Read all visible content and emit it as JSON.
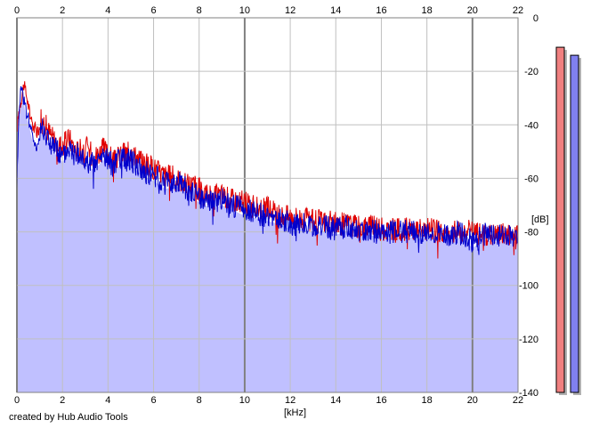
{
  "credit": "created by Hub Audio Tools",
  "chart_data": {
    "type": "area",
    "xlabel": "[kHz]",
    "ylabel": "[dB]",
    "xlim": [
      0,
      22
    ],
    "ylim": [
      -140,
      0
    ],
    "x_ticks": [
      0,
      2,
      4,
      6,
      8,
      10,
      12,
      14,
      16,
      18,
      20,
      22
    ],
    "y_ticks": [
      0,
      -20,
      -40,
      -60,
      -80,
      -100,
      -120,
      -140
    ],
    "major_x_gridlines": [
      0,
      10,
      20
    ],
    "grid": true,
    "colors": {
      "fill": "#c0c0ff",
      "left_line": "#e00000",
      "right_line": "#0000cc",
      "grid": "#c0c0c0",
      "major_grid": "#808080",
      "left_meter": "#f08080",
      "right_meter": "#8080f0"
    },
    "series": [
      {
        "color": "#e00000",
        "x": [
          0.0,
          0.1,
          0.2,
          0.3,
          0.4,
          0.5,
          0.7,
          0.9,
          1.1,
          1.3,
          1.5,
          1.7,
          2.0,
          2.3,
          2.6,
          3.0,
          3.4,
          3.8,
          4.2,
          4.6,
          5.0,
          5.5,
          6.0,
          6.5,
          7.0,
          7.5,
          8.0,
          8.5,
          9.0,
          9.5,
          10.0,
          10.5,
          11.0,
          11.5,
          12.0,
          12.5,
          13.0,
          13.5,
          14.0,
          14.5,
          15.0,
          15.5,
          16.0,
          16.5,
          17.0,
          17.5,
          18.0,
          18.5,
          19.0,
          19.5,
          20.0,
          20.5,
          21.0,
          21.5,
          22.0
        ],
        "values": [
          -42,
          -34,
          -30,
          -25,
          -28,
          -33,
          -40,
          -43,
          -37,
          -41,
          -44,
          -46,
          -48,
          -45,
          -50,
          -48,
          -52,
          -49,
          -53,
          -51,
          -50,
          -54,
          -56,
          -59,
          -60,
          -62,
          -64,
          -67,
          -66,
          -68,
          -69,
          -71,
          -71,
          -74,
          -74,
          -75,
          -76,
          -76,
          -77,
          -77,
          -78,
          -78,
          -79,
          -79,
          -79,
          -79,
          -79,
          -80,
          -80,
          -80,
          -80,
          -81,
          -81,
          -81,
          -81
        ]
      },
      {
        "color": "#0000cc",
        "x": [
          0.0,
          0.1,
          0.2,
          0.3,
          0.4,
          0.5,
          0.7,
          0.9,
          1.1,
          1.3,
          1.5,
          1.7,
          2.0,
          2.3,
          2.6,
          3.0,
          3.4,
          3.8,
          4.2,
          4.6,
          5.0,
          5.5,
          6.0,
          6.5,
          7.0,
          7.5,
          8.0,
          8.5,
          9.0,
          9.5,
          10.0,
          10.5,
          11.0,
          11.5,
          12.0,
          12.5,
          13.0,
          13.5,
          14.0,
          14.5,
          15.0,
          15.5,
          16.0,
          16.5,
          17.0,
          17.5,
          18.0,
          18.5,
          19.0,
          19.5,
          20.0,
          20.5,
          21.0,
          21.5,
          22.0
        ],
        "values": [
          -62,
          -33,
          -25,
          -30,
          -35,
          -37,
          -45,
          -48,
          -40,
          -44,
          -47,
          -49,
          -52,
          -48,
          -51,
          -53,
          -55,
          -51,
          -55,
          -53,
          -53,
          -57,
          -59,
          -62,
          -61,
          -64,
          -67,
          -69,
          -68,
          -70,
          -72,
          -73,
          -74,
          -75,
          -77,
          -77,
          -78,
          -78,
          -79,
          -78,
          -80,
          -79,
          -81,
          -80,
          -80,
          -80,
          -81,
          -80,
          -81,
          -80,
          -84,
          -81,
          -82,
          -81,
          -82
        ]
      }
    ],
    "meters": [
      {
        "color": "#f08080",
        "level_db": -11
      },
      {
        "color": "#8080f0",
        "level_db": -14
      }
    ]
  }
}
